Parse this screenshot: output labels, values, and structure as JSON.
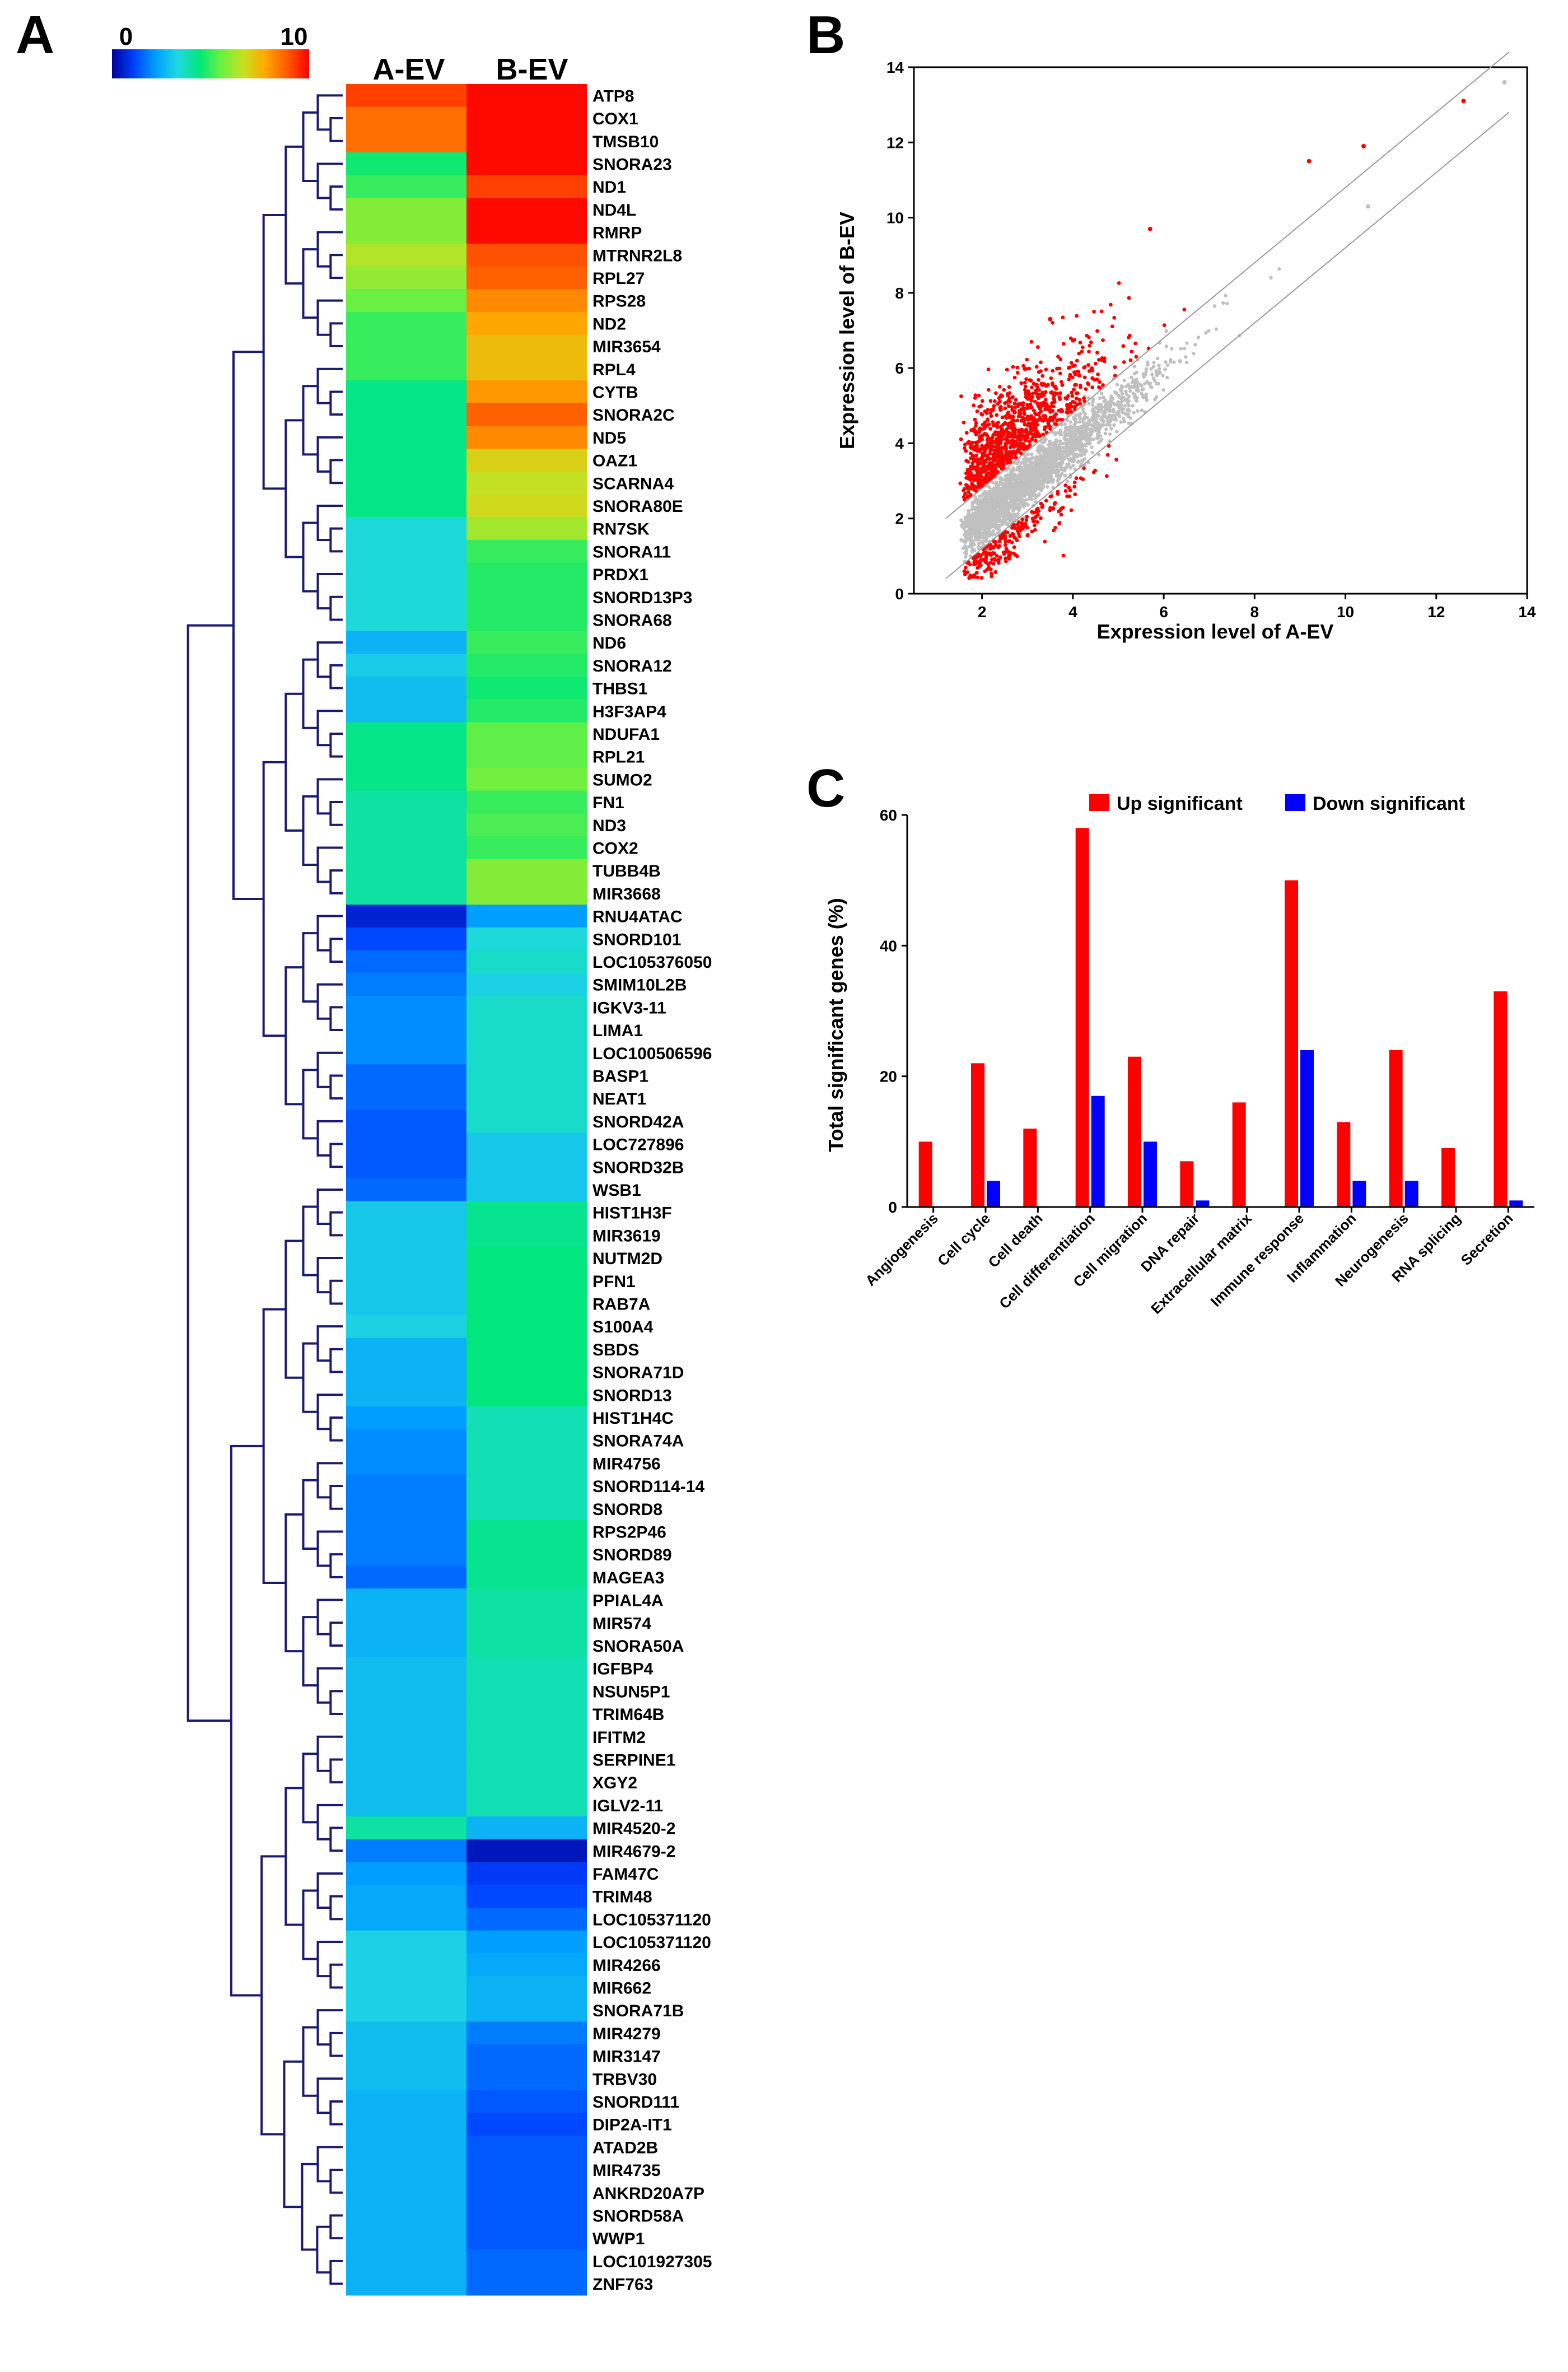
{
  "panels": {
    "a": "A",
    "b": "B",
    "c": "C"
  },
  "colors": {
    "heat_scale": [
      "#00009a",
      "#0040ff",
      "#00a0ff",
      "#20d8e0",
      "#00e87a",
      "#6ef040",
      "#c8e020",
      "#ffa800",
      "#ff5a00",
      "#ff0000"
    ],
    "dendrogram": "#1a1a6e",
    "scatter_up": "#ff0000",
    "scatter_ns": "#c0c0c0",
    "bar_up": "#ff0000",
    "bar_down": "#0000ff"
  },
  "chart_data": [
    {
      "type": "heatmap",
      "title": "",
      "columns": [
        "A-EV",
        "B-EV"
      ],
      "colorbar": {
        "min_label": "0",
        "max_label": "10",
        "min": 0,
        "max": 10
      },
      "rows": [
        {
          "gene": "ATP8",
          "values": [
            9.2,
            9.9
          ]
        },
        {
          "gene": "COX1",
          "values": [
            8.6,
            9.9
          ]
        },
        {
          "gene": "TMSB10",
          "values": [
            8.6,
            9.9
          ]
        },
        {
          "gene": "SNORA23",
          "values": [
            4.6,
            9.9
          ]
        },
        {
          "gene": "ND1",
          "values": [
            5.0,
            9.2
          ]
        },
        {
          "gene": "ND4L",
          "values": [
            5.8,
            9.9
          ]
        },
        {
          "gene": "RMRP",
          "values": [
            5.8,
            9.9
          ]
        },
        {
          "gene": "MTRNR2L8",
          "values": [
            6.4,
            9.0
          ]
        },
        {
          "gene": "RPL27",
          "values": [
            6.0,
            8.8
          ]
        },
        {
          "gene": "RPS28",
          "values": [
            5.5,
            8.2
          ]
        },
        {
          "gene": "ND2",
          "values": [
            5.0,
            7.8
          ]
        },
        {
          "gene": "MIR3654",
          "values": [
            5.0,
            7.4
          ]
        },
        {
          "gene": "RPL4",
          "values": [
            5.0,
            7.4
          ]
        },
        {
          "gene": "CYTB",
          "values": [
            4.3,
            8.0
          ]
        },
        {
          "gene": "SNORA2C",
          "values": [
            4.3,
            8.8
          ]
        },
        {
          "gene": "ND5",
          "values": [
            4.3,
            8.2
          ]
        },
        {
          "gene": "OAZ1",
          "values": [
            4.3,
            7.0
          ]
        },
        {
          "gene": "SCARNA4",
          "values": [
            4.3,
            6.6
          ]
        },
        {
          "gene": "SNORA80E",
          "values": [
            4.3,
            6.8
          ]
        },
        {
          "gene": "RN7SK",
          "values": [
            3.4,
            6.2
          ]
        },
        {
          "gene": "SNORA11",
          "values": [
            3.4,
            5.0
          ]
        },
        {
          "gene": "PRDX1",
          "values": [
            3.4,
            4.8
          ]
        },
        {
          "gene": "SNORD13P3",
          "values": [
            3.4,
            4.8
          ]
        },
        {
          "gene": "SNORA68",
          "values": [
            3.4,
            4.8
          ]
        },
        {
          "gene": "ND6",
          "values": [
            2.6,
            5.0
          ]
        },
        {
          "gene": "SNORA12",
          "values": [
            3.1,
            4.8
          ]
        },
        {
          "gene": "THBS1",
          "values": [
            2.8,
            4.6
          ]
        },
        {
          "gene": "H3F3AP4",
          "values": [
            2.8,
            4.8
          ]
        },
        {
          "gene": "NDUFA1",
          "values": [
            4.3,
            5.4
          ]
        },
        {
          "gene": "RPL21",
          "values": [
            4.3,
            5.4
          ]
        },
        {
          "gene": "SUMO2",
          "values": [
            4.3,
            5.6
          ]
        },
        {
          "gene": "FN1",
          "values": [
            4.0,
            5.0
          ]
        },
        {
          "gene": "ND3",
          "values": [
            4.0,
            5.2
          ]
        },
        {
          "gene": "COX2",
          "values": [
            4.0,
            5.0
          ]
        },
        {
          "gene": "TUBB4B",
          "values": [
            4.0,
            5.8
          ]
        },
        {
          "gene": "MIR3668",
          "values": [
            4.0,
            5.8
          ]
        },
        {
          "gene": "RNU4ATAC",
          "values": [
            0.6,
            2.2
          ]
        },
        {
          "gene": "SNORD101",
          "values": [
            1.2,
            3.4
          ]
        },
        {
          "gene": "LOC105376050",
          "values": [
            1.6,
            3.6
          ]
        },
        {
          "gene": "SMIM10L2B",
          "values": [
            1.8,
            3.2
          ]
        },
        {
          "gene": "IGKV3-11",
          "values": [
            2.0,
            3.6
          ]
        },
        {
          "gene": "LIMA1",
          "values": [
            2.0,
            3.6
          ]
        },
        {
          "gene": "LOC100506596",
          "values": [
            2.0,
            3.6
          ]
        },
        {
          "gene": "BASP1",
          "values": [
            1.6,
            3.6
          ]
        },
        {
          "gene": "NEAT1",
          "values": [
            1.6,
            3.6
          ]
        },
        {
          "gene": "SNORD42A",
          "values": [
            1.4,
            3.6
          ]
        },
        {
          "gene": "LOC727896",
          "values": [
            1.4,
            3.0
          ]
        },
        {
          "gene": "SNORD32B",
          "values": [
            1.4,
            3.0
          ]
        },
        {
          "gene": "WSB1",
          "values": [
            1.6,
            3.0
          ]
        },
        {
          "gene": "HIST1H3F",
          "values": [
            3.0,
            4.2
          ]
        },
        {
          "gene": "MIR3619",
          "values": [
            3.0,
            4.2
          ]
        },
        {
          "gene": "NUTM2D",
          "values": [
            3.0,
            4.4
          ]
        },
        {
          "gene": "PFN1",
          "values": [
            3.0,
            4.4
          ]
        },
        {
          "gene": "RAB7A",
          "values": [
            3.0,
            4.4
          ]
        },
        {
          "gene": "S100A4",
          "values": [
            3.2,
            4.4
          ]
        },
        {
          "gene": "SBDS",
          "values": [
            2.6,
            4.4
          ]
        },
        {
          "gene": "SNORA71D",
          "values": [
            2.6,
            4.4
          ]
        },
        {
          "gene": "SNORD13",
          "values": [
            2.6,
            4.4
          ]
        },
        {
          "gene": "HIST1H4C",
          "values": [
            2.2,
            3.8
          ]
        },
        {
          "gene": "SNORA74A",
          "values": [
            2.0,
            3.8
          ]
        },
        {
          "gene": "MIR4756",
          "values": [
            2.0,
            3.8
          ]
        },
        {
          "gene": "SNORD114-14",
          "values": [
            1.8,
            3.8
          ]
        },
        {
          "gene": "SNORD8",
          "values": [
            1.8,
            3.8
          ]
        },
        {
          "gene": "RPS2P46",
          "values": [
            1.8,
            4.2
          ]
        },
        {
          "gene": "SNORD89",
          "values": [
            1.8,
            4.2
          ]
        },
        {
          "gene": "MAGEA3",
          "values": [
            1.6,
            4.2
          ]
        },
        {
          "gene": "PPIAL4A",
          "values": [
            2.6,
            4.0
          ]
        },
        {
          "gene": "MIR574",
          "values": [
            2.6,
            4.0
          ]
        },
        {
          "gene": "SNORA50A",
          "values": [
            2.6,
            4.0
          ]
        },
        {
          "gene": "IGFBP4",
          "values": [
            2.8,
            3.8
          ]
        },
        {
          "gene": "NSUN5P1",
          "values": [
            2.8,
            3.8
          ]
        },
        {
          "gene": "TRIM64B",
          "values": [
            2.8,
            3.8
          ]
        },
        {
          "gene": "IFITM2",
          "values": [
            2.8,
            3.8
          ]
        },
        {
          "gene": "SERPINE1",
          "values": [
            2.8,
            3.8
          ]
        },
        {
          "gene": "XGY2",
          "values": [
            2.8,
            3.8
          ]
        },
        {
          "gene": "IGLV2-11",
          "values": [
            2.8,
            3.8
          ]
        },
        {
          "gene": "MIR4520-2",
          "values": [
            4.0,
            2.6
          ]
        },
        {
          "gene": "MIR4679-2",
          "values": [
            1.8,
            0.4
          ]
        },
        {
          "gene": "FAM47C",
          "values": [
            2.2,
            1.0
          ]
        },
        {
          "gene": "TRIM48",
          "values": [
            2.4,
            1.2
          ]
        },
        {
          "gene": "LOC105371120",
          "values": [
            2.4,
            1.6
          ]
        },
        {
          "gene": "LOC105371120",
          "values": [
            3.2,
            2.2
          ]
        },
        {
          "gene": "MIR4266",
          "values": [
            3.2,
            2.4
          ]
        },
        {
          "gene": "MIR662",
          "values": [
            3.2,
            2.6
          ]
        },
        {
          "gene": "SNORA71B",
          "values": [
            3.2,
            2.6
          ]
        },
        {
          "gene": "MIR4279",
          "values": [
            2.8,
            1.8
          ]
        },
        {
          "gene": "MIR3147",
          "values": [
            2.8,
            1.6
          ]
        },
        {
          "gene": "TRBV30",
          "values": [
            2.8,
            1.6
          ]
        },
        {
          "gene": "SNORD111",
          "values": [
            2.6,
            1.4
          ]
        },
        {
          "gene": "DIP2A-IT1",
          "values": [
            2.6,
            1.2
          ]
        },
        {
          "gene": "ATAD2B",
          "values": [
            2.6,
            1.4
          ]
        },
        {
          "gene": "MIR4735",
          "values": [
            2.6,
            1.4
          ]
        },
        {
          "gene": "ANKRD20A7P",
          "values": [
            2.6,
            1.4
          ]
        },
        {
          "gene": "SNORD58A",
          "values": [
            2.6,
            1.4
          ]
        },
        {
          "gene": "WWP1",
          "values": [
            2.6,
            1.4
          ]
        },
        {
          "gene": "LOC101927305",
          "values": [
            2.6,
            1.6
          ]
        },
        {
          "gene": "ZNF763",
          "values": [
            2.6,
            1.6
          ]
        }
      ]
    },
    {
      "type": "scatter",
      "title": "",
      "xlabel": "Expression level of A-EV",
      "ylabel": "Expression level of B-EV",
      "xlim": [
        0.5,
        14
      ],
      "ylim": [
        0,
        14
      ],
      "xticks": [
        2,
        4,
        6,
        8,
        10,
        12,
        14
      ],
      "yticks": [
        0,
        2,
        4,
        6,
        8,
        10,
        12,
        14
      ],
      "reference_lines": [
        {
          "slope": 1,
          "intercept": 0.8
        },
        {
          "slope": 1,
          "intercept": -0.8
        }
      ],
      "series": [
        {
          "name": "not significant",
          "color": "#c0c0c0"
        },
        {
          "name": "up significant",
          "color": "#ff0000"
        }
      ],
      "sample_points": [
        {
          "x": 12.6,
          "y": 13.1,
          "group": "up"
        },
        {
          "x": 13.5,
          "y": 13.6,
          "group": "ns"
        },
        {
          "x": 10.4,
          "y": 11.9,
          "group": "up"
        },
        {
          "x": 9.2,
          "y": 11.5,
          "group": "up"
        },
        {
          "x": 10.5,
          "y": 10.3,
          "group": "ns"
        },
        {
          "x": 5.7,
          "y": 9.7,
          "group": "up"
        },
        {
          "x": 3.5,
          "y": 7.3,
          "group": "up"
        }
      ]
    },
    {
      "type": "bar",
      "title": "",
      "xlabel": "",
      "ylabel": "Total significant genes (%)",
      "ylim": [
        0,
        60
      ],
      "yticks": [
        0,
        20,
        40,
        60
      ],
      "categories": [
        "Angiogenesis",
        "Cell cycle",
        "Cell death",
        "Cell differentiation",
        "Cell migration",
        "DNA repair",
        "Extracellular matrix",
        "Immune response",
        "Inflammation",
        "Neurogenesis",
        "RNA splicing",
        "Secretion"
      ],
      "series": [
        {
          "name": "Up significant",
          "color": "#ff0000",
          "values": [
            10,
            22,
            12,
            58,
            23,
            7,
            16,
            50,
            13,
            24,
            9,
            33
          ]
        },
        {
          "name": "Down significant",
          "color": "#0000ff",
          "values": [
            0,
            4,
            0,
            17,
            10,
            1,
            0,
            24,
            4,
            4,
            0,
            1
          ]
        }
      ],
      "legend": "top-right"
    }
  ]
}
